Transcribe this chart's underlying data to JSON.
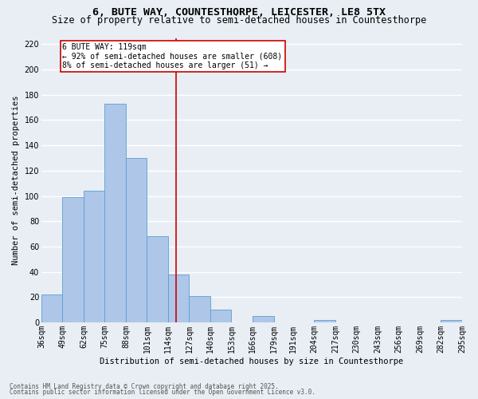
{
  "title1": "6, BUTE WAY, COUNTESTHORPE, LEICESTER, LE8 5TX",
  "title2": "Size of property relative to semi-detached houses in Countesthorpe",
  "xlabel": "Distribution of semi-detached houses by size in Countesthorpe",
  "ylabel": "Number of semi-detached properties",
  "footnote1": "Contains HM Land Registry data © Crown copyright and database right 2025.",
  "footnote2": "Contains public sector information licensed under the Open Government Licence v3.0.",
  "bin_edges": [
    36,
    49,
    62,
    75,
    88,
    101,
    114,
    127,
    140,
    153,
    166,
    179,
    191,
    204,
    217,
    230,
    243,
    256,
    269,
    282,
    295
  ],
  "bin_labels": [
    "36sqm",
    "49sqm",
    "62sqm",
    "75sqm",
    "88sqm",
    "101sqm",
    "114sqm",
    "127sqm",
    "140sqm",
    "153sqm",
    "166sqm",
    "179sqm",
    "191sqm",
    "204sqm",
    "217sqm",
    "230sqm",
    "243sqm",
    "256sqm",
    "269sqm",
    "282sqm",
    "295sqm"
  ],
  "bar_heights": [
    22,
    99,
    104,
    173,
    130,
    68,
    38,
    21,
    10,
    0,
    5,
    0,
    0,
    2,
    0,
    0,
    0,
    0,
    0,
    2
  ],
  "bar_color": "#aec6e8",
  "bar_edge_color": "#5a9fd4",
  "vline_x": 119,
  "vline_color": "#cc0000",
  "annotation_text": "6 BUTE WAY: 119sqm\n← 92% of semi-detached houses are smaller (608)\n8% of semi-detached houses are larger (51) →",
  "annotation_box_color": "#ffffff",
  "annotation_box_edge": "#cc0000",
  "ylim": [
    0,
    225
  ],
  "yticks": [
    0,
    20,
    40,
    60,
    80,
    100,
    120,
    140,
    160,
    180,
    200,
    220
  ],
  "background_color": "#e8eef4",
  "grid_color": "#ffffff",
  "title1_fontsize": 9.5,
  "title2_fontsize": 8.5,
  "axis_fontsize": 7.5,
  "tick_fontsize": 7,
  "annot_fontsize": 7,
  "footnote_fontsize": 5.5
}
